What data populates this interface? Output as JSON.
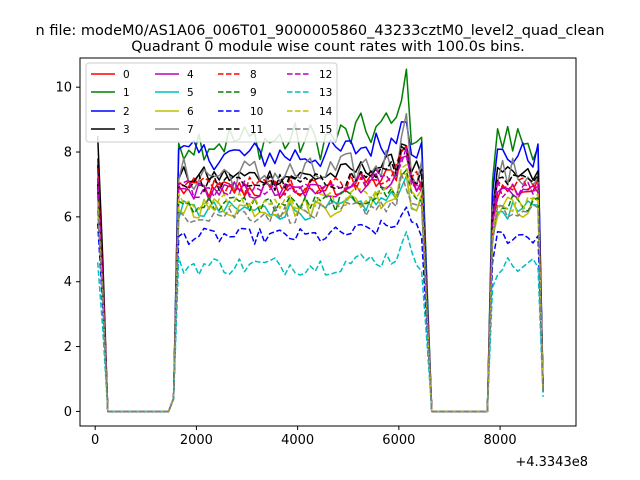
{
  "chart_data": {
    "type": "line",
    "suptitle": "n file: modeM0/AS1A06_006T01_9000005860_43233cztM0_level2_quad_clean",
    "title": "Quadrant 0 module wise count rates with 100.0s bins.",
    "xlabel": "",
    "ylabel": "",
    "x_offset_label": "+4.3343e8",
    "xlim": [
      -300,
      9500
    ],
    "ylim": [
      -0.45,
      10.9
    ],
    "xticks": [
      0,
      2000,
      4000,
      6000,
      8000
    ],
    "xtick_labels": [
      "0",
      "2000",
      "4000",
      "6000",
      "8000"
    ],
    "yticks": [
      0,
      2,
      4,
      6,
      8,
      10
    ],
    "ytick_labels": [
      "0",
      "2",
      "4",
      "6",
      "8",
      "10"
    ],
    "grid": false,
    "legend_position": "top-left",
    "legend_columns": 4,
    "segments": [
      {
        "x_start": 50,
        "x_end": 6650,
        "step": 100
      },
      {
        "x_start": 7750,
        "x_end": 8850,
        "step": 100
      }
    ],
    "series": [
      {
        "name": "0",
        "color": "#ff0000",
        "dashed": false,
        "level": 6.85,
        "spread": 0.35,
        "start": 7.8,
        "end": 0.7
      },
      {
        "name": "1",
        "color": "#008000",
        "dashed": false,
        "level": 8.35,
        "spread": 0.6,
        "start": 6.9,
        "end": 0.7
      },
      {
        "name": "2",
        "color": "#0000ff",
        "dashed": false,
        "level": 7.9,
        "spread": 0.45,
        "start": 7.6,
        "end": 0.7
      },
      {
        "name": "3",
        "color": "#000000",
        "dashed": false,
        "level": 7.25,
        "spread": 0.3,
        "start": 8.5,
        "end": 0.7
      },
      {
        "name": "4",
        "color": "#bf00bf",
        "dashed": false,
        "level": 6.8,
        "spread": 0.3,
        "start": 7.1,
        "end": 0.7
      },
      {
        "name": "5",
        "color": "#00bfbf",
        "dashed": false,
        "level": 6.2,
        "spread": 0.3,
        "start": 6.6,
        "end": 0.6
      },
      {
        "name": "6",
        "color": "#bfbf00",
        "dashed": false,
        "level": 6.3,
        "spread": 0.35,
        "start": 6.3,
        "end": 0.6
      },
      {
        "name": "7",
        "color": "#808080",
        "dashed": false,
        "level": 7.3,
        "spread": 0.55,
        "start": 6.8,
        "end": 0.7
      },
      {
        "name": "8",
        "color": "#ff0000",
        "dashed": true,
        "level": 6.95,
        "spread": 0.3,
        "start": 7.5,
        "end": 0.7
      },
      {
        "name": "9",
        "color": "#008000",
        "dashed": true,
        "level": 6.4,
        "spread": 0.3,
        "start": 6.9,
        "end": 0.6
      },
      {
        "name": "10",
        "color": "#0000ff",
        "dashed": true,
        "level": 5.4,
        "spread": 0.25,
        "start": 5.8,
        "end": 0.6
      },
      {
        "name": "11",
        "color": "#000000",
        "dashed": true,
        "level": 7.05,
        "spread": 0.3,
        "start": 7.0,
        "end": 0.7
      },
      {
        "name": "12",
        "color": "#bf00bf",
        "dashed": true,
        "level": 6.9,
        "spread": 0.3,
        "start": 7.2,
        "end": 0.7
      },
      {
        "name": "13",
        "color": "#00bfbf",
        "dashed": true,
        "level": 4.5,
        "spread": 0.3,
        "start": 4.6,
        "end": 0.45
      },
      {
        "name": "14",
        "color": "#bfbf00",
        "dashed": true,
        "level": 6.45,
        "spread": 0.3,
        "start": 6.5,
        "end": 0.6
      },
      {
        "name": "15",
        "color": "#808080",
        "dashed": true,
        "level": 6.1,
        "spread": 0.3,
        "start": 6.2,
        "end": 0.6
      }
    ]
  }
}
